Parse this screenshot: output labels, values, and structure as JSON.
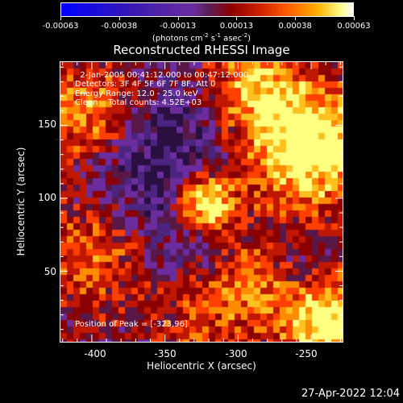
{
  "colorbar": {
    "labels": [
      "-0.00063",
      "-0.00038",
      "-0.00013",
      "0.00013",
      "0.00038",
      "0.00063"
    ]
  },
  "units_text": "(photons cm",
  "units_sup1": "-2",
  "units_mid": " s",
  "units_sup2": "-1",
  "units_mid2": " asec",
  "units_sup3": "-2",
  "units_end": ")",
  "title": "Reconstructed RHESSI Image",
  "info": {
    "line1": "  2-Jan-2005 00:41:12.000 to 00:47:12.000",
    "line2": "Detectors: 3F 4F 5F 6F 7F 8F, Att 0",
    "line3": "Energy Range: 12.0 - 25.0 keV",
    "line4": "Clean    Total counts: 4.52E+03"
  },
  "peak": "Position of Peak = [-323,96]",
  "xaxis": {
    "label": "Heliocentric X (arcsec)",
    "ticks": [
      "-400",
      "-350",
      "-300",
      "-250"
    ]
  },
  "yaxis": {
    "label": "Heliocentric Y (arcsec)",
    "ticks": [
      "150",
      "100",
      "50"
    ]
  },
  "timestamp": "27-Apr-2022 12:04",
  "chart_data": {
    "type": "heatmap",
    "title": "Reconstructed RHESSI Image",
    "xlabel": "Heliocentric X (arcsec)",
    "ylabel": "Heliocentric Y (arcsec)",
    "xlim": [
      -422,
      -228
    ],
    "ylim": [
      1,
      194
    ],
    "colorbar_range": [
      -0.00063,
      0.00063
    ],
    "peak": {
      "x": -323,
      "y": 96
    },
    "colors": [
      "#2a1040",
      "#4b2580",
      "#6b2d9e",
      "#5a1848",
      "#8b0000",
      "#c01800",
      "#ff4000",
      "#ff8c00",
      "#ffc020",
      "#ffff80"
    ]
  }
}
